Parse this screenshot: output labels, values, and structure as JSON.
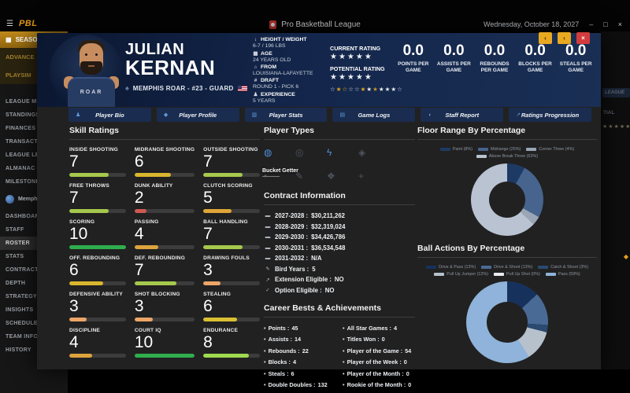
{
  "titlebar": {
    "menu_glyph": "☰",
    "logo_text": "PBL",
    "app_title": "Pro Basketball League",
    "date": "Wednesday, October 18, 2027",
    "minimize": "–",
    "maximize": "□",
    "close": "×"
  },
  "sidebar": {
    "season_header": {
      "icon_glyph": "▦",
      "label": "SEASON"
    },
    "season_items": [
      {
        "label": "ADVANCE"
      },
      {
        "label": "PLAYSIM"
      }
    ],
    "league_items": [
      {
        "label": "LEAGUE MEDIA"
      },
      {
        "label": "STANDINGS"
      },
      {
        "label": "FINANCES"
      },
      {
        "label": "TRANSACTIONS"
      },
      {
        "label": "LEAGUE LEADERS"
      },
      {
        "label": "ALMANAC"
      },
      {
        "label": "MILESTONES"
      }
    ],
    "team_label": "Memphis",
    "team_items": [
      {
        "label": "DASHBOARD"
      },
      {
        "label": "STAFF"
      },
      {
        "label": "ROSTER",
        "active": true
      },
      {
        "label": "STATS"
      },
      {
        "label": "CONTRACTS"
      },
      {
        "label": "DEPTH"
      },
      {
        "label": "STRATEGY"
      },
      {
        "label": "INSIGHTS"
      },
      {
        "label": "SCHEDULE"
      },
      {
        "label": "TEAM INFO"
      },
      {
        "label": "HISTORY"
      }
    ]
  },
  "background_fragments": {
    "button_label": "LEAGUE",
    "text_1": "TIAL",
    "stars": "★★★★★",
    "accent_dot": "◆"
  },
  "modal_controls": [
    {
      "name": "previous-player-button",
      "glyph": "‹",
      "bg": "#e8a820",
      "fg": "#3a2d05"
    },
    {
      "name": "next-player-button",
      "glyph": "›",
      "bg": "#e8a820",
      "fg": "#3a2d05"
    },
    {
      "name": "close-player-button",
      "glyph": "×",
      "bg": "#d23c3c",
      "fg": "#ffffff"
    }
  ],
  "player": {
    "first_name": "JULIAN",
    "last_name": "KERNAN",
    "emblem_glyph": "♠",
    "jersey_text": "ROAR",
    "team_icon_glyph": "♠",
    "team_line": "MEMPHIS ROAR - #23 - GUARD",
    "vitals": [
      {
        "name": "ruler-icon",
        "glyph": "↕",
        "label": "HEIGHT / WEIGHT",
        "value": "6-7 / 196 LBS"
      },
      {
        "name": "calendar-icon",
        "glyph": "▦",
        "label": "AGE",
        "value": "24 YEARS OLD"
      },
      {
        "name": "school-icon",
        "glyph": "⌂",
        "label": "FROM",
        "value": "LOUISIANA-LAFAYETTE"
      },
      {
        "name": "hash-icon",
        "glyph": "#",
        "label": "DRAFT",
        "value": "ROUND 1 - PICK 6"
      },
      {
        "name": "experience-icon",
        "glyph": "♟",
        "label": "EXPERIENCE",
        "value": "5 YEARS"
      }
    ],
    "current_rating_label": "CURRENT RATING",
    "current_rating_stars": "★★★★★",
    "potential_rating_label": "POTENTIAL RATING",
    "potential_rating_stars": "★★★★★",
    "awards_row": [
      {
        "glyph": "☆",
        "color": "#cfd6df"
      },
      {
        "glyph": "★",
        "color": "#e3aa1f"
      },
      {
        "glyph": "☆",
        "color": "#e3aa1f"
      },
      {
        "glyph": "☆",
        "color": "#cfd6df"
      },
      {
        "glyph": "☆",
        "color": "#cfd6df"
      },
      {
        "glyph": "★",
        "color": "#e3aa1f"
      },
      {
        "glyph": "★",
        "color": "#e9edf2"
      },
      {
        "glyph": "★",
        "color": "#c8912a"
      },
      {
        "glyph": "★",
        "color": "#e9edf2"
      },
      {
        "glyph": "★",
        "color": "#e9edf2"
      },
      {
        "glyph": "★",
        "color": "#e9edf2"
      },
      {
        "glyph": "☆",
        "color": "#cfd6df"
      }
    ],
    "per_game_stats": [
      {
        "value": "0.0",
        "label": "POINTS PER GAME"
      },
      {
        "value": "0.0",
        "label": "ASSISTS PER GAME"
      },
      {
        "value": "0.0",
        "label": "REBOUNDS PER GAME"
      },
      {
        "value": "0.0",
        "label": "BLOCKS PER GAME"
      },
      {
        "value": "0.0",
        "label": "STEALS PER GAME"
      }
    ]
  },
  "tabs": [
    {
      "name": "tab-player-bio",
      "glyph": "♟",
      "label": "Player Bio"
    },
    {
      "name": "tab-player-profile",
      "glyph": "◆",
      "label": "Player Profile"
    },
    {
      "name": "tab-player-stats",
      "glyph": "▥",
      "label": "Player Stats"
    },
    {
      "name": "tab-game-logs",
      "glyph": "▤",
      "label": "Game Logs"
    },
    {
      "name": "tab-staff-report",
      "glyph": "◖",
      "label": "Staff Report"
    },
    {
      "name": "tab-ratings-progression",
      "glyph": "↗",
      "label": "Ratings Progression"
    }
  ],
  "skills": {
    "heading": "Skill Ratings",
    "items": [
      {
        "label": "INSIDE SHOOTING",
        "value": 7,
        "color": "#a6c84d"
      },
      {
        "label": "MIDRANGE SHOOTING",
        "value": 6,
        "color": "#d9b62e"
      },
      {
        "label": "OUTSIDE SHOOTING",
        "value": 7,
        "color": "#a6c84d"
      },
      {
        "label": "FREE THROWS",
        "value": 7,
        "color": "#a6c84d"
      },
      {
        "label": "DUNK ABILITY",
        "value": 2,
        "color": "#cf5a52"
      },
      {
        "label": "CLUTCH SCORING",
        "value": 5,
        "color": "#dfa637"
      },
      {
        "label": "SCORING",
        "value": 10,
        "color": "#2fae4d"
      },
      {
        "label": "PASSING",
        "value": 4,
        "color": "#dda33d"
      },
      {
        "label": "BALL HANDLING",
        "value": 7,
        "color": "#a6c84d"
      },
      {
        "label": "OFF. REBOUNDING",
        "value": 6,
        "color": "#d9b62e"
      },
      {
        "label": "DEF. REBOUNDING",
        "value": 7,
        "color": "#a6c84d"
      },
      {
        "label": "DRAWING FOULS",
        "value": 3,
        "color": "#eca569"
      },
      {
        "label": "DEFENSIVE ABILITY",
        "value": 3,
        "color": "#eca569"
      },
      {
        "label": "SHOT BLOCKING",
        "value": 3,
        "color": "#eca569"
      },
      {
        "label": "STEALING",
        "value": 6,
        "color": "#d9c032"
      },
      {
        "label": "DISCIPLINE",
        "value": 4,
        "color": "#dda33d"
      },
      {
        "label": "COURT IQ",
        "value": 10,
        "color": "#2fae4d"
      },
      {
        "label": "ENDURANCE",
        "value": 8,
        "color": "#9ed94f"
      }
    ]
  },
  "player_types": {
    "heading": "Player Types",
    "tooltip": "Bucket Getter",
    "icons": [
      {
        "name": "bucket-icon",
        "glyph": "◍",
        "active": true
      },
      {
        "name": "target-icon",
        "glyph": "◎",
        "active": false
      },
      {
        "name": "lightning-icon",
        "glyph": "ϟ",
        "active": true
      },
      {
        "name": "whistle-icon",
        "glyph": "◈",
        "active": false
      },
      {
        "name": "badge-icon",
        "glyph": "•",
        "active": false
      },
      {
        "name": "pencil-icon",
        "glyph": "✎",
        "active": false
      },
      {
        "name": "shield-icon",
        "glyph": "❖",
        "active": false
      },
      {
        "name": "syringe-icon",
        "glyph": "+",
        "active": false
      }
    ]
  },
  "contract": {
    "heading": "Contract Information",
    "rows": [
      {
        "name": "banknote-icon",
        "glyph": "▬",
        "label": "2027-2028 :",
        "value": "$30,211,262"
      },
      {
        "name": "banknote-icon",
        "glyph": "▬",
        "label": "2028-2029 :",
        "value": "$32,319,024"
      },
      {
        "name": "banknote-icon",
        "glyph": "▬",
        "label": "2029-2030 :",
        "value": "$34,426,786"
      },
      {
        "name": "banknote-icon",
        "glyph": "▬",
        "label": "2030-2031 :",
        "value": "$36,534,548"
      },
      {
        "name": "banknote-icon",
        "glyph": "▬",
        "label": "2031-2032 :",
        "value": "N/A"
      },
      {
        "name": "feather-icon",
        "glyph": "✎",
        "label": "Bird Years :",
        "value": "5"
      },
      {
        "name": "chart-up-icon",
        "glyph": "↗",
        "label": "Extension Eligible :",
        "value": "NO"
      },
      {
        "name": "thumbs-up-icon",
        "glyph": "✓",
        "label": "Option Eligible :",
        "value": "NO"
      }
    ]
  },
  "career": {
    "heading": "Career Bests & Achievements",
    "bullet": "•",
    "left": [
      {
        "label": "Points :",
        "value": "45"
      },
      {
        "label": "Assists :",
        "value": "14"
      },
      {
        "label": "Rebounds :",
        "value": "22"
      },
      {
        "label": "Blocks :",
        "value": "4"
      },
      {
        "label": "Steals :",
        "value": "6"
      },
      {
        "label": "Double Doubles :",
        "value": "132"
      },
      {
        "label": "Triple Doubles :",
        "value": "4"
      }
    ],
    "right": [
      {
        "label": "All Star Games :",
        "value": "4"
      },
      {
        "label": "Titles Won :",
        "value": "0"
      },
      {
        "label": "Player of the Game :",
        "value": "54"
      },
      {
        "label": "Player of the Week :",
        "value": "0"
      },
      {
        "label": "Player of the Month :",
        "value": "0"
      },
      {
        "label": "Rookie of the Month :",
        "value": "0"
      }
    ]
  },
  "chart_data": [
    {
      "type": "pie",
      "donut": true,
      "title": "Floor Range By Percentage",
      "labels": [
        "Paint",
        "Midrange",
        "Corner Three",
        "Above Break Three"
      ],
      "values": [
        8,
        25,
        4,
        63
      ],
      "colors": [
        "#1c3a64",
        "#46648e",
        "#9aa6b5",
        "#b9c3d2"
      ],
      "legend_position": "top",
      "legend": [
        {
          "text": "Paint (8%)",
          "color": "#1c3a64"
        },
        {
          "text": "Midrange (25%)",
          "color": "#46648e"
        },
        {
          "text": "Corner Three (4%)",
          "color": "#9aa6b5"
        },
        {
          "text": "Above Break Three (63%)",
          "color": "#b9c3d2"
        }
      ]
    },
    {
      "type": "pie",
      "donut": true,
      "title": "Ball Actions By Percentage",
      "labels": [
        "Drive & Pass",
        "Drive & Shoot",
        "Catch & Shoot",
        "Pull Up Jumper",
        "Pull Up Shot",
        "Pass"
      ],
      "values": [
        13,
        13,
        3,
        12,
        0,
        59
      ],
      "colors": [
        "#16325c",
        "#4a6a96",
        "#2c4a70",
        "#b7c1cc",
        "#e8ecf0",
        "#8fb3da"
      ],
      "legend_position": "top",
      "legend": [
        {
          "text": "Drive & Pass (13%)",
          "color": "#16325c"
        },
        {
          "text": "Drive & Shoot (13%)",
          "color": "#4a6a96"
        },
        {
          "text": "Catch & Shoot (3%)",
          "color": "#2c4a70"
        },
        {
          "text": "Pull Up Jumper (12%)",
          "color": "#b7c1cc"
        },
        {
          "text": "Pull Up Shot (0%)",
          "color": "#e8ecf0"
        },
        {
          "text": "Pass (59%)",
          "color": "#8fb3da"
        }
      ]
    }
  ]
}
